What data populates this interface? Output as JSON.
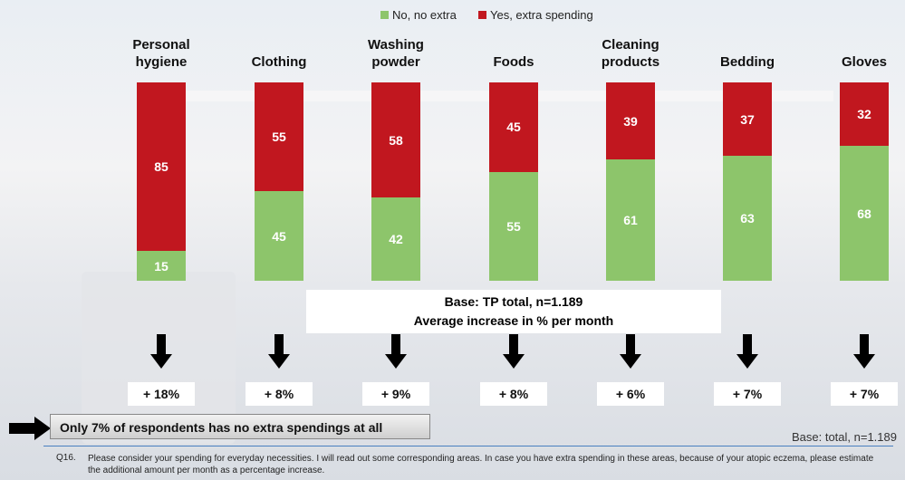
{
  "chart_data": {
    "type": "stacked_bar",
    "categories": [
      "Personal hygiene",
      "Clothing",
      "Washing powder",
      "Foods",
      "Cleaning products",
      "Bedding",
      "Gloves"
    ],
    "series": [
      {
        "name": "No, no extra",
        "color": "#8dc56b",
        "values": [
          15,
          45,
          42,
          55,
          61,
          63,
          68
        ]
      },
      {
        "name": "Yes, extra spending",
        "color": "#c1171f",
        "values": [
          85,
          55,
          58,
          45,
          39,
          37,
          32
        ]
      }
    ],
    "ylim": [
      0,
      100
    ],
    "increase_labels": [
      "+ 18%",
      "+ 8%",
      "+ 9%",
      "+ 8%",
      "+ 6%",
      "+ 7%",
      "+ 7%"
    ],
    "base_box": [
      "Base: TP total, n=1.189",
      "Average increase  in % per month"
    ],
    "callout": "Only 7% of respondents has no extra spendings at all",
    "base_note": "Base: total, n=1.189",
    "footnote_id": "Q16.",
    "footnote": "Please consider your spending for everyday necessities. I will read out some corresponding areas. In case you have extra spending in these areas,  because of your atopic eczema, please estimate the additional amount per month as a percentage increase."
  }
}
